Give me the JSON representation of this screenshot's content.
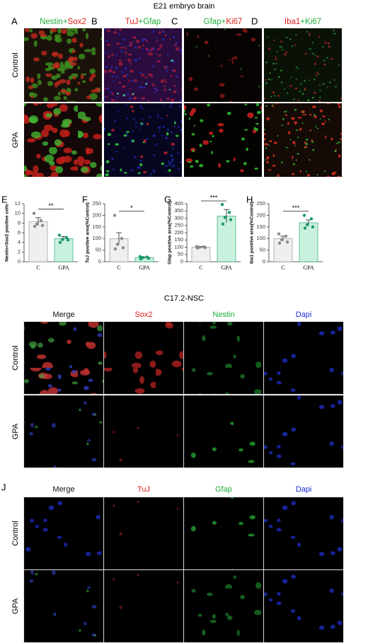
{
  "figure": {
    "top_title": "E21 embryo brain",
    "top_panels": [
      {
        "letter": "A",
        "label_parts": [
          {
            "text": "Nestin",
            "color": "#1fae3a"
          },
          {
            "text": "+",
            "color": "#1fae3a"
          },
          {
            "text": "Sox2",
            "color": "#e0201b"
          }
        ]
      },
      {
        "letter": "B",
        "label_parts": [
          {
            "text": "TuJ",
            "color": "#e0201b"
          },
          {
            "text": "+",
            "color": "#1fae3a"
          },
          {
            "text": "Gfap",
            "color": "#1fae3a"
          }
        ]
      },
      {
        "letter": "C",
        "label_parts": [
          {
            "text": "Gfap",
            "color": "#1fae3a"
          },
          {
            "text": "+",
            "color": "#1fae3a"
          },
          {
            "text": "Ki67",
            "color": "#e0201b"
          }
        ]
      },
      {
        "letter": "D",
        "label_parts": [
          {
            "text": "Iba1",
            "color": "#e0201b"
          },
          {
            "text": "+",
            "color": "#1fae3a"
          },
          {
            "text": "Ki67",
            "color": "#1fae3a"
          }
        ]
      }
    ],
    "row_labels": [
      "Control",
      "GPA"
    ],
    "nsc_title": "C17.2-NSC",
    "nsc_headers": [
      {
        "text": "Merge",
        "color": "#111111"
      },
      {
        "text": "Sox2",
        "color": "#e0201b"
      },
      {
        "text": "Nestin",
        "color": "#1fae3a"
      },
      {
        "text": "Dapi",
        "color": "#1a2bd6"
      }
    ],
    "diff_letter": "J",
    "diff_headers": [
      {
        "text": "Merge",
        "color": "#111111"
      },
      {
        "text": "TuJ",
        "color": "#e0201b"
      },
      {
        "text": "Gfap",
        "color": "#1fae3a"
      },
      {
        "text": "Dapi",
        "color": "#1a2bd6"
      }
    ]
  },
  "chart_data": [
    {
      "type": "bar",
      "letter": "E",
      "ylabel": "Nestin+Sox2 positive cells",
      "categories": [
        "C",
        "GPA"
      ],
      "values": [
        8.3,
        4.8
      ],
      "errors": [
        0.8,
        0.4
      ],
      "points": [
        [
          10,
          8.5,
          7.8,
          7.5,
          7.3
        ],
        [
          5.5,
          5,
          4.6,
          4.5,
          4
        ]
      ],
      "colors": [
        "#efefef",
        "#c9f1dd"
      ],
      "point_colors": [
        "#8a8a8a",
        "#1a9a6a"
      ],
      "ylim": [
        0,
        12
      ],
      "yticks": [
        0,
        2,
        4,
        6,
        8,
        10,
        12
      ],
      "significance": "**"
    },
    {
      "type": "bar",
      "letter": "F",
      "ylabel": "TuJ positive area(%Control)",
      "categories": [
        "C",
        "GPA"
      ],
      "values": [
        100,
        18
      ],
      "errors": [
        25,
        3
      ],
      "points": [
        [
          200,
          100,
          75,
          60,
          55
        ],
        [
          22,
          20,
          18,
          15,
          12
        ]
      ],
      "colors": [
        "#efefef",
        "#c9f1dd"
      ],
      "point_colors": [
        "#8a8a8a",
        "#1a9a6a"
      ],
      "ylim": [
        0,
        250
      ],
      "yticks": [
        0,
        50,
        100,
        150,
        200,
        250
      ],
      "significance": "*"
    },
    {
      "type": "bar",
      "letter": "G",
      "ylabel": "Gfap positive area(%Control)",
      "categories": [
        "C",
        "GPA"
      ],
      "values": [
        100,
        315
      ],
      "errors": [
        5,
        45
      ],
      "points": [
        [
          105,
          102,
          100,
          98,
          95
        ],
        [
          395,
          340,
          305,
          290,
          260
        ]
      ],
      "colors": [
        "#efefef",
        "#c9f1dd"
      ],
      "point_colors": [
        "#8a8a8a",
        "#1a9a6a"
      ],
      "ylim": [
        0,
        400
      ],
      "yticks": [
        0,
        50,
        100,
        150,
        200,
        250,
        300,
        350,
        400
      ],
      "significance": "***"
    },
    {
      "type": "bar",
      "letter": "H",
      "ylabel": "Iba1 positive area(%Control)",
      "categories": [
        "C",
        "GPA"
      ],
      "values": [
        100,
        168
      ],
      "errors": [
        10,
        12
      ],
      "points": [
        [
          120,
          110,
          95,
          85,
          80
        ],
        [
          200,
          185,
          160,
          150,
          145
        ]
      ],
      "colors": [
        "#efefef",
        "#c9f1dd"
      ],
      "point_colors": [
        "#8a8a8a",
        "#1a9a6a"
      ],
      "ylim": [
        0,
        250
      ],
      "yticks": [
        0,
        50,
        100,
        150,
        200,
        250
      ],
      "significance": "***"
    }
  ]
}
